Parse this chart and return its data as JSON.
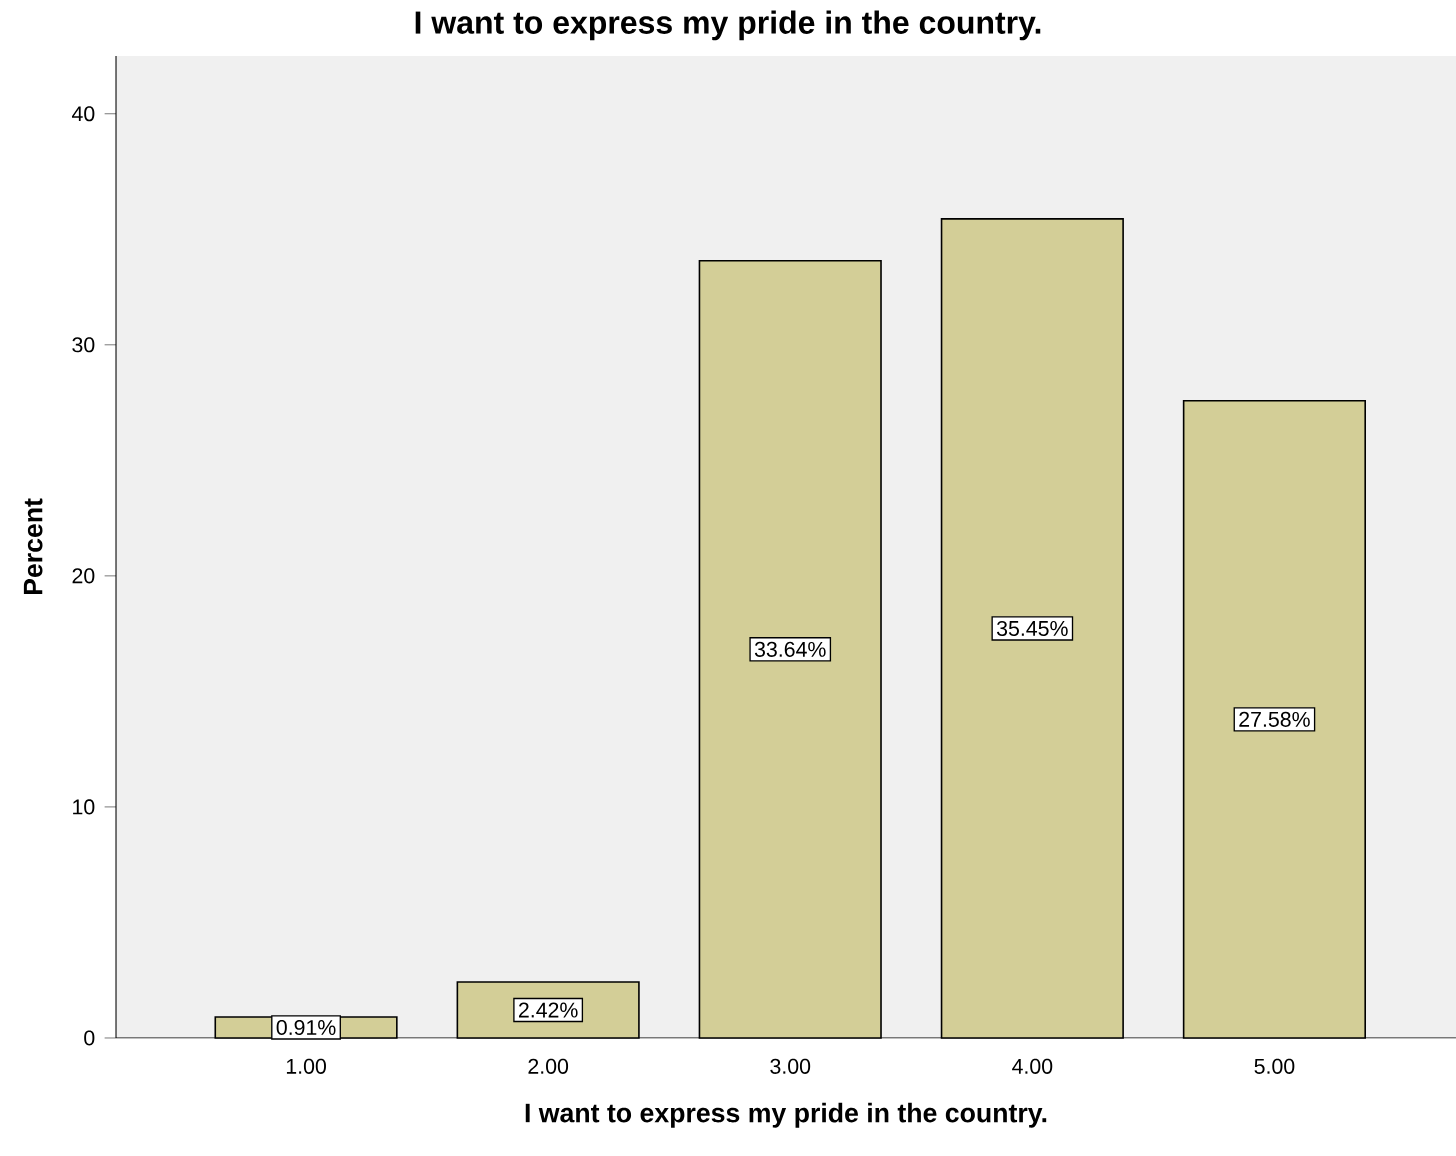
{
  "chart_data": {
    "type": "bar",
    "title": "I want to express my pride in the country.",
    "xlabel": "I want to express my pride in the country.",
    "ylabel": "Percent",
    "categories": [
      "1.00",
      "2.00",
      "3.00",
      "4.00",
      "5.00"
    ],
    "values": [
      0.91,
      2.42,
      33.64,
      35.45,
      27.58
    ],
    "value_labels": [
      "0.91%",
      "2.42%",
      "33.64%",
      "35.45%",
      "27.58%"
    ],
    "color": "#d3ce97",
    "ylim": [
      0,
      42.5
    ],
    "yticks": [
      0,
      10,
      20,
      30,
      40
    ],
    "grid": false
  }
}
